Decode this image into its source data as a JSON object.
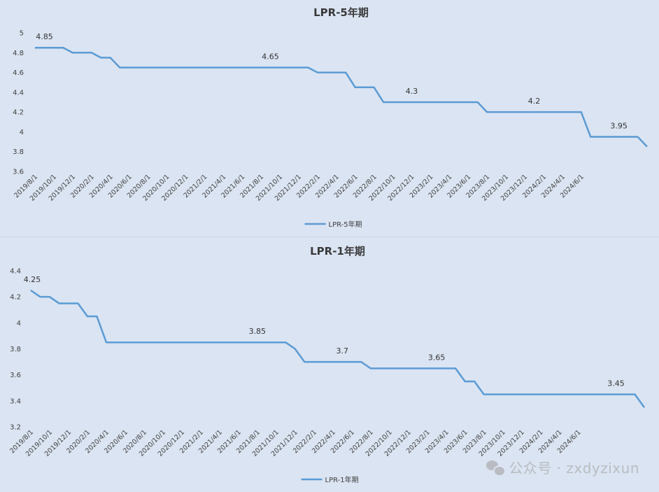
{
  "chart_data": [
    {
      "type": "line",
      "title": "LPR-5年期",
      "legend": "LPR-5年期",
      "legend_position": "bottom",
      "color": "#5b9bd5",
      "ylim": [
        3.6,
        5
      ],
      "yticks": [
        "3.6",
        "3.8",
        "4",
        "4.2",
        "4.4",
        "4.6",
        "4.8",
        "5"
      ],
      "xticks": [
        "2019/8/1",
        "2019/10/1",
        "2019/12/1",
        "2020/2/1",
        "2020/4/1",
        "2020/6/1",
        "2020/8/1",
        "2020/10/1",
        "2020/12/1",
        "2021/2/1",
        "2021/4/1",
        "2021/6/1",
        "2021/8/1",
        "2021/10/1",
        "2021/12/1",
        "2022/2/1",
        "2022/4/1",
        "2022/6/1",
        "2022/8/1",
        "2022/10/1",
        "2022/12/1",
        "2023/2/1",
        "2023/4/1",
        "2023/6/1",
        "2023/8/1",
        "2023/10/1",
        "2023/12/1",
        "2024/2/1",
        "2024/4/1",
        "2024/6/1"
      ],
      "values": [
        4.85,
        4.85,
        4.85,
        4.85,
        4.8,
        4.8,
        4.8,
        4.75,
        4.75,
        4.65,
        4.65,
        4.65,
        4.65,
        4.65,
        4.65,
        4.65,
        4.65,
        4.65,
        4.65,
        4.65,
        4.65,
        4.65,
        4.65,
        4.65,
        4.65,
        4.65,
        4.65,
        4.65,
        4.65,
        4.65,
        4.6,
        4.6,
        4.6,
        4.6,
        4.45,
        4.45,
        4.45,
        4.3,
        4.3,
        4.3,
        4.3,
        4.3,
        4.3,
        4.3,
        4.3,
        4.3,
        4.3,
        4.3,
        4.2,
        4.2,
        4.2,
        4.2,
        4.2,
        4.2,
        4.2,
        4.2,
        4.2,
        4.2,
        4.2,
        3.95,
        3.95,
        3.95,
        3.95,
        3.95,
        3.95,
        3.85
      ],
      "annotations": [
        {
          "index": 1,
          "text": "4.85"
        },
        {
          "index": 25,
          "text": "4.65"
        },
        {
          "index": 40,
          "text": "4.3"
        },
        {
          "index": 53,
          "text": "4.2"
        },
        {
          "index": 62,
          "text": "3.95"
        }
      ]
    },
    {
      "type": "line",
      "title": "LPR-1年期",
      "legend": "LPR-1年期",
      "legend_position": "bottom",
      "color": "#5b9bd5",
      "ylim": [
        3.2,
        4.4
      ],
      "yticks": [
        "3.2",
        "3.4",
        "3.6",
        "3.8",
        "4",
        "4.2",
        "4.4"
      ],
      "xticks": [
        "2019/8/1",
        "2019/10/1",
        "2019/12/1",
        "2020/2/1",
        "2020/4/1",
        "2020/6/1",
        "2020/8/1",
        "2020/10/1",
        "2020/12/1",
        "2021/2/1",
        "2021/4/1",
        "2021/6/1",
        "2021/8/1",
        "2021/10/1",
        "2021/12/1",
        "2022/2/1",
        "2022/4/1",
        "2022/6/1",
        "2022/8/1",
        "2022/10/1",
        "2022/12/1",
        "2023/2/1",
        "2023/4/1",
        "2023/6/1",
        "2023/8/1",
        "2023/10/1",
        "2023/12/1",
        "2024/2/1",
        "2024/4/1",
        "2024/6/1"
      ],
      "values": [
        4.25,
        4.2,
        4.2,
        4.15,
        4.15,
        4.15,
        4.05,
        4.05,
        3.85,
        3.85,
        3.85,
        3.85,
        3.85,
        3.85,
        3.85,
        3.85,
        3.85,
        3.85,
        3.85,
        3.85,
        3.85,
        3.85,
        3.85,
        3.85,
        3.85,
        3.85,
        3.85,
        3.85,
        3.8,
        3.7,
        3.7,
        3.7,
        3.7,
        3.7,
        3.7,
        3.7,
        3.65,
        3.65,
        3.65,
        3.65,
        3.65,
        3.65,
        3.65,
        3.65,
        3.65,
        3.65,
        3.55,
        3.55,
        3.45,
        3.45,
        3.45,
        3.45,
        3.45,
        3.45,
        3.45,
        3.45,
        3.45,
        3.45,
        3.45,
        3.45,
        3.45,
        3.45,
        3.45,
        3.45,
        3.45,
        3.35
      ],
      "annotations": [
        {
          "index": 0,
          "text": "4.25"
        },
        {
          "index": 24,
          "text": "3.85"
        },
        {
          "index": 33,
          "text": "3.7"
        },
        {
          "index": 43,
          "text": "3.65"
        },
        {
          "index": 62,
          "text": "3.45"
        }
      ]
    }
  ],
  "watermark": {
    "icon": "wechat-icon",
    "text": "公众号 · zxdyzixun"
  }
}
